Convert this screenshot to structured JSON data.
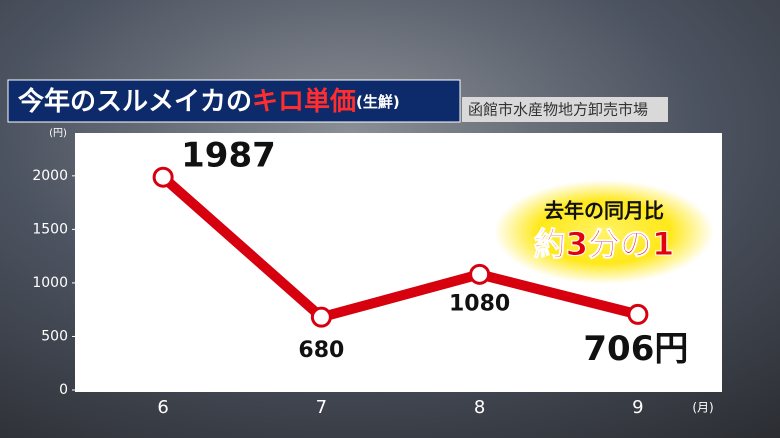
{
  "chart_data": {
    "type": "line",
    "title_parts": [
      "今年のスルメイカの",
      "キロ単価",
      "(生鮮)"
    ],
    "source": "函館市水産物地方卸売市場",
    "y_unit": "(円)",
    "x_unit": "(月)",
    "annotation": [
      "去年の同月比",
      "約3分の1"
    ],
    "categories": [
      "6",
      "7",
      "8",
      "9"
    ],
    "series": [
      {
        "name": "キロ単価",
        "color": "#d7000f",
        "values": [
          1987,
          680,
          1080,
          706
        ],
        "value_labels": [
          "1987",
          "680",
          "1080",
          "706円"
        ]
      }
    ],
    "ylim": [
      0,
      2400
    ],
    "yticks": [
      0,
      500,
      1000,
      1500,
      2000
    ]
  }
}
